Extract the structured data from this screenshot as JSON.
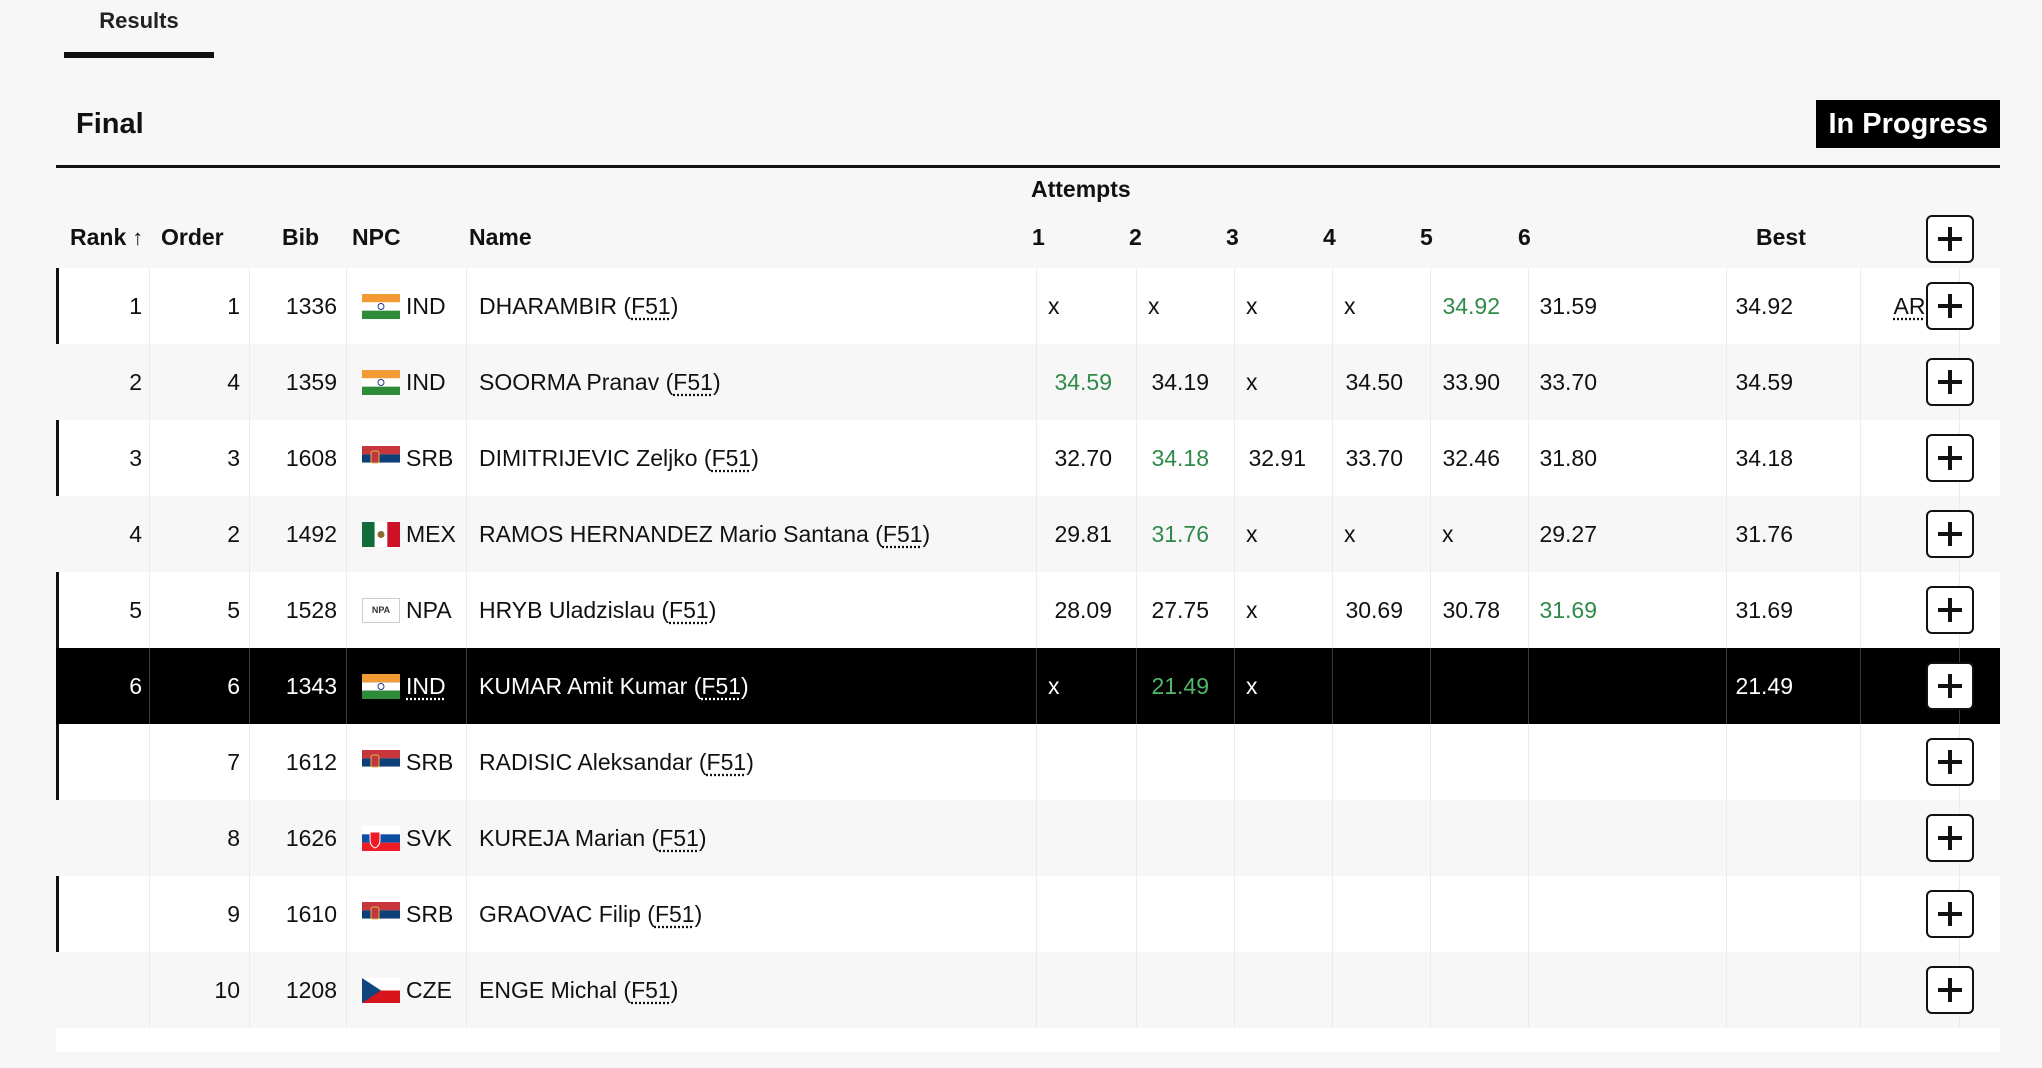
{
  "tabs": {
    "results": "Results"
  },
  "section": {
    "title": "Final",
    "status": "In Progress"
  },
  "table": {
    "attempts_label": "Attempts",
    "headers": {
      "rank": "Rank",
      "order": "Order",
      "bib": "Bib",
      "npc": "NPC",
      "name": "Name",
      "a1": "1",
      "a2": "2",
      "a3": "3",
      "a4": "4",
      "a5": "5",
      "a6": "6",
      "best": "Best"
    },
    "rows": [
      {
        "rank": "1",
        "order": "1",
        "bib": "1336",
        "npc": "IND",
        "flag": "ind",
        "name": "DHARAMBIR",
        "cls": "F51",
        "attempts": [
          "x",
          "x",
          "x",
          "x",
          "34.92",
          "31.59"
        ],
        "best_attempt": 4,
        "best": "34.92",
        "record": "AR"
      },
      {
        "rank": "2",
        "order": "4",
        "bib": "1359",
        "npc": "IND",
        "flag": "ind",
        "name": "SOORMA Pranav",
        "cls": "F51",
        "attempts": [
          "34.59",
          "34.19",
          "x",
          "34.50",
          "33.90",
          "33.70"
        ],
        "best_attempt": 0,
        "best": "34.59",
        "record": ""
      },
      {
        "rank": "3",
        "order": "3",
        "bib": "1608",
        "npc": "SRB",
        "flag": "srb",
        "name": "DIMITRIJEVIC Zeljko",
        "cls": "F51",
        "attempts": [
          "32.70",
          "34.18",
          "32.91",
          "33.70",
          "32.46",
          "31.80"
        ],
        "best_attempt": 1,
        "best": "34.18",
        "record": ""
      },
      {
        "rank": "4",
        "order": "2",
        "bib": "1492",
        "npc": "MEX",
        "flag": "mex",
        "name": "RAMOS HERNANDEZ Mario Santana",
        "cls": "F51",
        "attempts": [
          "29.81",
          "31.76",
          "x",
          "x",
          "x",
          "29.27"
        ],
        "best_attempt": 1,
        "best": "31.76",
        "record": ""
      },
      {
        "rank": "5",
        "order": "5",
        "bib": "1528",
        "npc": "NPA",
        "flag": "npa",
        "name": "HRYB Uladzislau",
        "cls": "F51",
        "attempts": [
          "28.09",
          "27.75",
          "x",
          "30.69",
          "30.78",
          "31.69"
        ],
        "best_attempt": 5,
        "best": "31.69",
        "record": ""
      },
      {
        "rank": "6",
        "order": "6",
        "bib": "1343",
        "npc": "IND",
        "flag": "ind",
        "name": "KUMAR Amit Kumar",
        "cls": "F51",
        "attempts": [
          "x",
          "21.49",
          "x",
          "",
          "",
          ""
        ],
        "best_attempt": 1,
        "best": "21.49",
        "record": ""
      },
      {
        "rank": "",
        "order": "7",
        "bib": "1612",
        "npc": "SRB",
        "flag": "srb",
        "name": "RADISIC Aleksandar",
        "cls": "F51",
        "attempts": [
          "",
          "",
          "",
          "",
          "",
          ""
        ],
        "best_attempt": -1,
        "best": "",
        "record": ""
      },
      {
        "rank": "",
        "order": "8",
        "bib": "1626",
        "npc": "SVK",
        "flag": "svk",
        "name": "KUREJA Marian",
        "cls": "F51",
        "attempts": [
          "",
          "",
          "",
          "",
          "",
          ""
        ],
        "best_attempt": -1,
        "best": "",
        "record": ""
      },
      {
        "rank": "",
        "order": "9",
        "bib": "1610",
        "npc": "SRB",
        "flag": "srb",
        "name": "GRAOVAC Filip",
        "cls": "F51",
        "attempts": [
          "",
          "",
          "",
          "",
          "",
          ""
        ],
        "best_attempt": -1,
        "best": "",
        "record": ""
      },
      {
        "rank": "",
        "order": "10",
        "bib": "1208",
        "npc": "CZE",
        "flag": "cze",
        "name": "ENGE Michal",
        "cls": "F51",
        "attempts": [
          "",
          "",
          "",
          "",
          "",
          ""
        ],
        "best_attempt": -1,
        "best": "",
        "record": ""
      }
    ]
  },
  "icons": {
    "sort": "arrow-up-icon",
    "expand": "plus-icon"
  },
  "colors": {
    "best_attempt": "#2f8a4a",
    "highlight_row": "#000000",
    "status_badge": "#000000"
  }
}
